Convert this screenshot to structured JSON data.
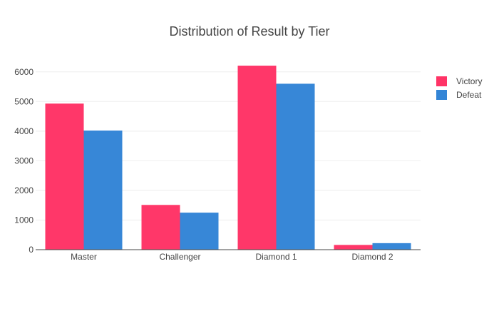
{
  "chart_data": {
    "type": "bar",
    "title": "Distribution of Result by Tier",
    "xlabel": "",
    "ylabel": "",
    "categories": [
      "Master",
      "Challenger",
      "Diamond 1",
      "Diamond 2"
    ],
    "series": [
      {
        "name": "Victory",
        "color": "#ff3366",
        "values": [
          4930,
          1510,
          6210,
          160
        ]
      },
      {
        "name": "Defeat",
        "color": "#3385d6",
        "values": [
          4020,
          1250,
          5600,
          220
        ]
      }
    ],
    "ylim": [
      0,
      6500
    ],
    "yticks": [
      0,
      1000,
      2000,
      3000,
      4000,
      5000,
      6000
    ],
    "grid": true,
    "legend_position": "top-right"
  }
}
